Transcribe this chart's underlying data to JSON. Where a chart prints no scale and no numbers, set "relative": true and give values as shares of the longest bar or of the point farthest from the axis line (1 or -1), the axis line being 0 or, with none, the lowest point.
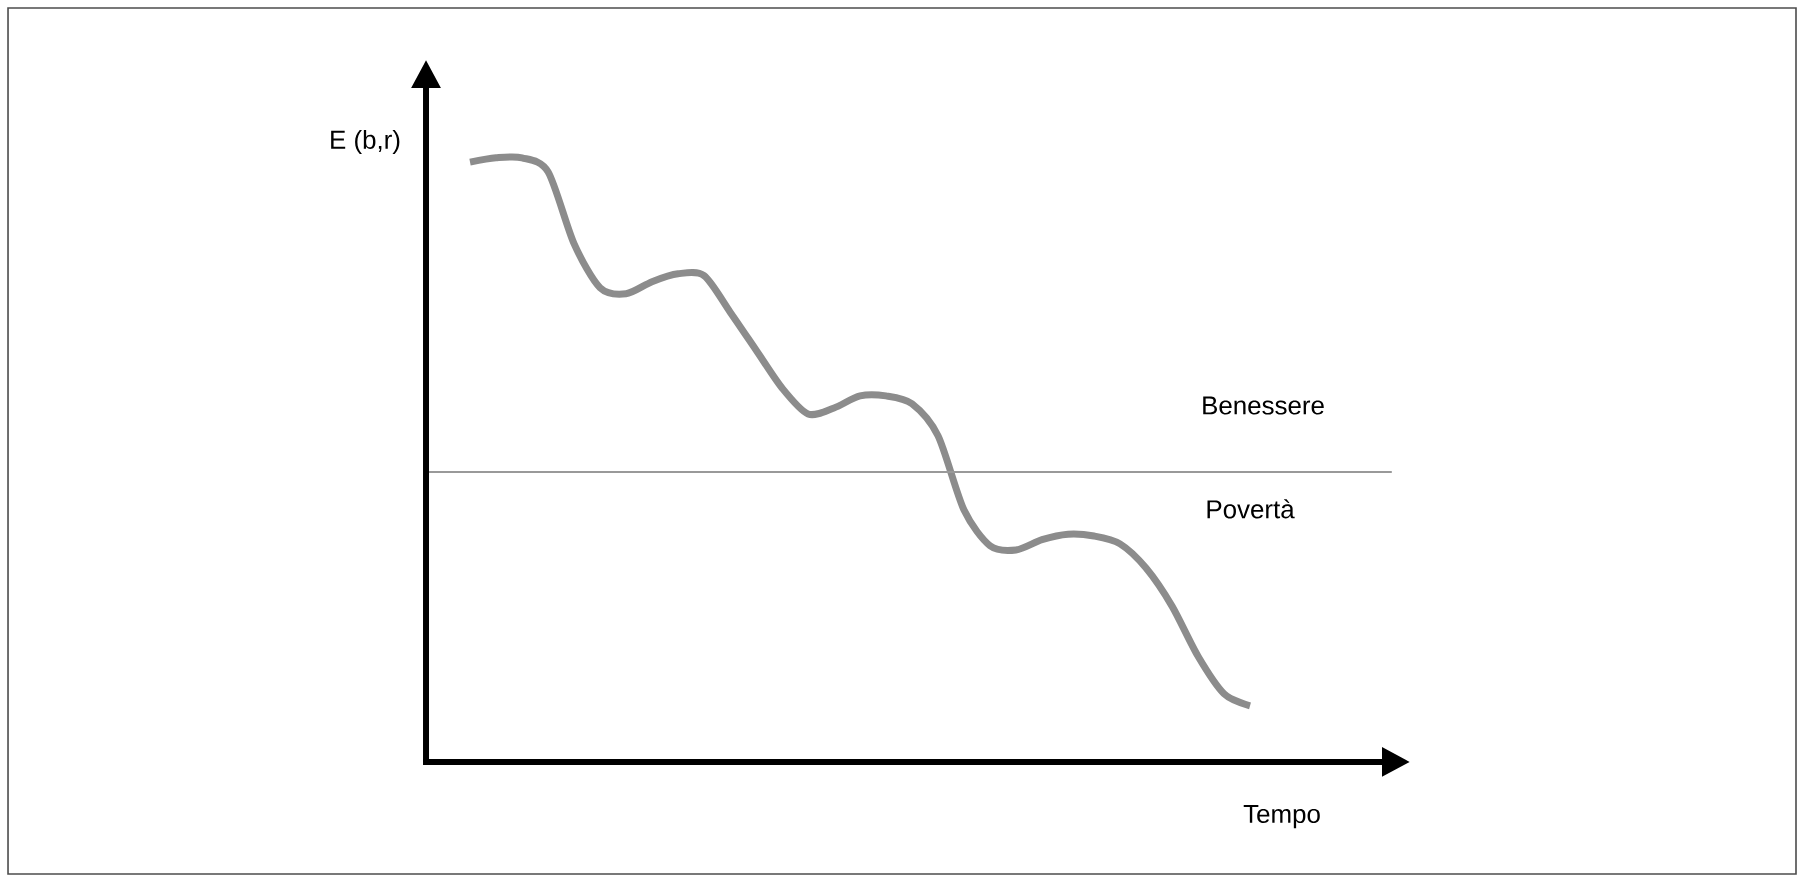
{
  "chart_data": {
    "type": "line",
    "relative": true,
    "ylabel": "E (b,r)",
    "xlabel": "Tempo",
    "categories": [
      null,
      null,
      null,
      null,
      null,
      null,
      null,
      null,
      null,
      null,
      null,
      null,
      null,
      null,
      null,
      null,
      null,
      null,
      null,
      null,
      null,
      null,
      null,
      null,
      null,
      null,
      null,
      null,
      null,
      null,
      null
    ],
    "series": [
      {
        "color": "#8c8c8c",
        "values": [
          0.993,
          1,
          1,
          0.977,
          0.858,
          0.785,
          0.775,
          0.795,
          0.808,
          0.805,
          0.745,
          0.682,
          0.619,
          0.576,
          0.586,
          0.606,
          0.606,
          0.593,
          0.54,
          0.417,
          0.358,
          0.351,
          0.368,
          0.377,
          0.374,
          0.361,
          0.321,
          0.258,
          0.175,
          0.113,
          0.093
        ]
      }
    ],
    "ref_lines": [
      {
        "axis": "y",
        "value": 0.48,
        "color": "#999999"
      }
    ],
    "annotations": [
      "Benessere",
      "Povertà"
    ]
  }
}
